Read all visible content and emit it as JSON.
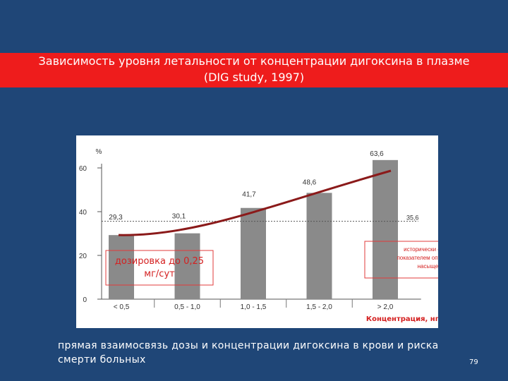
{
  "slide": {
    "title_line1": "Зависимость уровня летальности от концентрации дигоксина в плазме",
    "title_line2": "(DIG study, 1997)",
    "caption": "прямая взаимосвязь дозы и концентрации дигоксина в крови и риска смерти больных",
    "page_number": "79",
    "colors": {
      "background": "#1f4677",
      "title_bar": "#ee1c1c",
      "trend": "#8b1a1a",
      "bar": "#8a8a8a",
      "callout": "#e23b3b"
    }
  },
  "chart_data": {
    "type": "bar",
    "title": "",
    "ylabel": "%",
    "xlabel": "Концентрация, нг/мл",
    "ylim": [
      0,
      60
    ],
    "yticks": [
      0,
      20,
      40,
      60
    ],
    "categories": [
      "< 0,5",
      "0,5 - 1,0",
      "1,0 - 1,5",
      "1,5 - 2,0",
      "> 2,0"
    ],
    "values": [
      29.3,
      30.1,
      41.7,
      48.6,
      63.6
    ],
    "value_labels": [
      "29,3",
      "30,1",
      "41,7",
      "48,6",
      "63,6"
    ],
    "reference_line": {
      "value": 35.6,
      "label": "35,6",
      "style": "dotted"
    },
    "trend_line": {
      "shape": "curve",
      "color": "#8b1a1a"
    },
    "annotations": [
      {
        "text": "дозировка до 0,25 мг/сут",
        "near_categories": [
          "< 0,5",
          "0,5 - 1,0"
        ]
      },
      {
        "text": "исторически считался показателем оптимального насыщения",
        "near_categories": [
          "> 2,0"
        ]
      }
    ],
    "grid": false
  }
}
